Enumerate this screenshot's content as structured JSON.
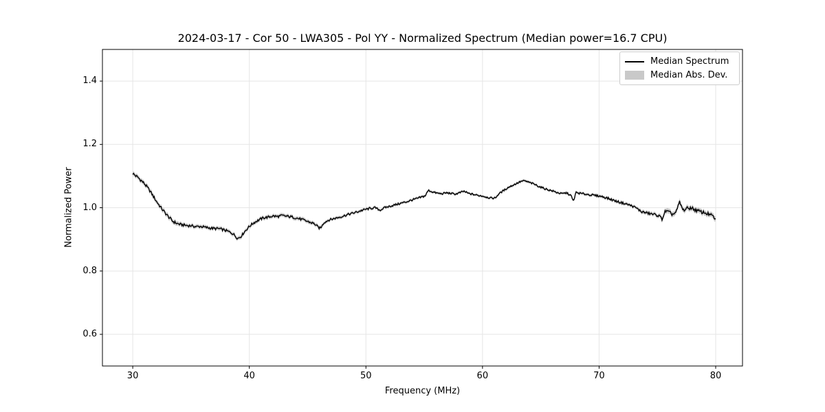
{
  "title": "2024-03-17 - Cor 50 - LWA305 - Pol YY - Normalized Spectrum (Median power=16.7 CPU)",
  "colors": {
    "line": "#000000",
    "band": "#c9c9c9",
    "grid": "#e5e5e5",
    "spine": "#000000",
    "background": "#ffffff",
    "legend_border": "#cccccc"
  },
  "legend": {
    "position": "upper right",
    "items": [
      {
        "label": "Median Spectrum",
        "swatch": "line",
        "color": "#000000"
      },
      {
        "label": "Median Abs. Dev.",
        "swatch": "patch",
        "color": "#c9c9c9"
      }
    ]
  },
  "chart_data": {
    "type": "line",
    "title": "2024-03-17 - Cor 50 - LWA305 - Pol YY - Normalized Spectrum (Median power=16.7 CPU)",
    "xlabel": "Frequency (MHz)",
    "ylabel": "Normalized Power",
    "xlim": [
      27.4,
      82.3
    ],
    "ylim": [
      0.5,
      1.5
    ],
    "xticks": [
      30,
      40,
      50,
      60,
      70,
      80
    ],
    "yticks": [
      0.6,
      0.8,
      1.0,
      1.2,
      1.4
    ],
    "grid": true,
    "legend_position": "upper right",
    "noise_amplitude_factor": 0.7,
    "series": [
      {
        "name": "Median Spectrum",
        "type": "line",
        "color": "#000000",
        "x": [
          30,
          30.5,
          31,
          31.5,
          32,
          32.5,
          33,
          33.4,
          33.8,
          34.2,
          34.6,
          35,
          35.4,
          35.8,
          36.2,
          36.6,
          37,
          37.4,
          37.8,
          38.2,
          38.6,
          39,
          39.3,
          39.6,
          40,
          40.4,
          40.8,
          41.2,
          41.6,
          42,
          42.4,
          42.8,
          43.2,
          43.6,
          44,
          44.4,
          44.8,
          45.2,
          45.6,
          45.9,
          46.1,
          46.4,
          46.8,
          47.2,
          47.6,
          48,
          48.4,
          48.8,
          49.2,
          49.6,
          50,
          50.4,
          50.8,
          51.2,
          51.6,
          52,
          52.4,
          52.8,
          53.2,
          53.6,
          54,
          54.4,
          54.8,
          55.1,
          55.35,
          55.7,
          56.1,
          56.5,
          56.9,
          57.3,
          57.7,
          58.1,
          58.4,
          58.8,
          59.2,
          59.6,
          60,
          60.4,
          60.8,
          61.1,
          61.4,
          61.8,
          62.2,
          62.6,
          63,
          63.3,
          63.6,
          64,
          64.4,
          64.8,
          65.2,
          65.6,
          66,
          66.4,
          66.8,
          67.2,
          67.6,
          67.8,
          68,
          68.4,
          68.8,
          69.2,
          69.6,
          70,
          70.4,
          70.8,
          71.2,
          71.6,
          72,
          72.4,
          72.8,
          73.2,
          73.6,
          74,
          74.4,
          74.8,
          75.1,
          75.4,
          75.7,
          76,
          76.3,
          76.6,
          76.9,
          77.2,
          77.5,
          77.9,
          78.3,
          78.7,
          79.1,
          79.5,
          79.8,
          80
        ],
        "y": [
          1.108,
          1.094,
          1.076,
          1.052,
          1.022,
          0.996,
          0.974,
          0.958,
          0.95,
          0.946,
          0.944,
          0.943,
          0.94,
          0.941,
          0.938,
          0.936,
          0.934,
          0.934,
          0.93,
          0.925,
          0.918,
          0.903,
          0.91,
          0.925,
          0.941,
          0.953,
          0.961,
          0.968,
          0.97,
          0.974,
          0.972,
          0.975,
          0.973,
          0.971,
          0.968,
          0.964,
          0.959,
          0.954,
          0.949,
          0.938,
          0.935,
          0.953,
          0.961,
          0.965,
          0.969,
          0.973,
          0.978,
          0.982,
          0.986,
          0.991,
          0.995,
          0.998,
          1.0,
          0.992,
          1.0,
          1.004,
          1.008,
          1.012,
          1.016,
          1.02,
          1.025,
          1.029,
          1.034,
          1.038,
          1.055,
          1.05,
          1.046,
          1.044,
          1.047,
          1.045,
          1.043,
          1.048,
          1.052,
          1.045,
          1.042,
          1.039,
          1.037,
          1.033,
          1.03,
          1.031,
          1.044,
          1.054,
          1.064,
          1.071,
          1.078,
          1.083,
          1.085,
          1.08,
          1.075,
          1.068,
          1.062,
          1.057,
          1.053,
          1.048,
          1.044,
          1.047,
          1.038,
          1.019,
          1.048,
          1.045,
          1.043,
          1.041,
          1.039,
          1.037,
          1.034,
          1.029,
          1.024,
          1.019,
          1.015,
          1.011,
          1.006,
          0.999,
          0.988,
          0.984,
          0.981,
          0.978,
          0.975,
          0.965,
          0.99,
          0.985,
          0.979,
          0.985,
          1.018,
          0.992,
          0.997,
          1.0,
          0.992,
          0.987,
          0.984,
          0.978,
          0.972,
          0.961
        ]
      },
      {
        "name": "Median Abs. Dev.",
        "type": "band",
        "color": "#c9c9c9",
        "half_width": [
          0.007,
          0.007,
          0.007,
          0.007,
          0.007,
          0.007,
          0.007,
          0.007,
          0.007,
          0.006,
          0.006,
          0.006,
          0.006,
          0.006,
          0.006,
          0.006,
          0.006,
          0.006,
          0.006,
          0.006,
          0.006,
          0.006,
          0.006,
          0.006,
          0.006,
          0.006,
          0.006,
          0.006,
          0.006,
          0.006,
          0.006,
          0.006,
          0.006,
          0.006,
          0.006,
          0.006,
          0.006,
          0.006,
          0.006,
          0.006,
          0.006,
          0.005,
          0.005,
          0.005,
          0.005,
          0.005,
          0.005,
          0.005,
          0.005,
          0.005,
          0.005,
          0.005,
          0.0045,
          0.0045,
          0.0045,
          0.0045,
          0.0045,
          0.0045,
          0.0045,
          0.0045,
          0.0045,
          0.0045,
          0.0045,
          0.0045,
          0.004,
          0.004,
          0.004,
          0.004,
          0.004,
          0.004,
          0.004,
          0.004,
          0.004,
          0.004,
          0.004,
          0.004,
          0.004,
          0.004,
          0.004,
          0.004,
          0.004,
          0.004,
          0.004,
          0.004,
          0.004,
          0.004,
          0.004,
          0.004,
          0.004,
          0.004,
          0.004,
          0.004,
          0.004,
          0.004,
          0.004,
          0.004,
          0.004,
          0.0045,
          0.0045,
          0.0045,
          0.0045,
          0.0045,
          0.0045,
          0.0045,
          0.005,
          0.005,
          0.005,
          0.005,
          0.005,
          0.005,
          0.005,
          0.005,
          0.006,
          0.006,
          0.006,
          0.006,
          0.006,
          0.008,
          0.008,
          0.008,
          0.008,
          0.008,
          0.008,
          0.008,
          0.008,
          0.008,
          0.008,
          0.008,
          0.008,
          0.008,
          0.008,
          0.008,
          0.008
        ]
      }
    ]
  },
  "axes": {
    "x_tick_labels": [
      "30",
      "40",
      "50",
      "60",
      "70",
      "80"
    ],
    "y_tick_labels": [
      "0.6",
      "0.8",
      "1.0",
      "1.2",
      "1.4"
    ]
  }
}
